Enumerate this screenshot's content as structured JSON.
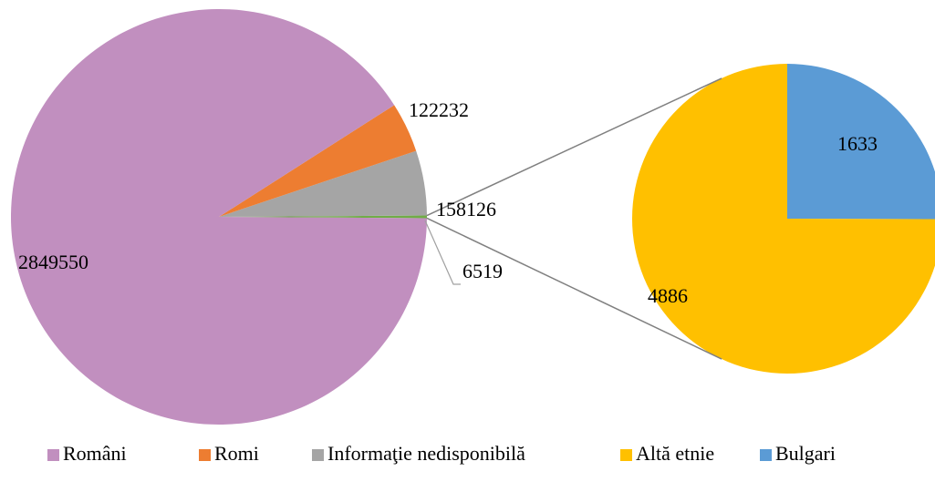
{
  "chart_data": {
    "type": "pie_of_pie",
    "categories": [
      "Români",
      "Romi",
      "Informaţie nedisponibilă"
    ],
    "values": [
      2849550,
      122232,
      158126
    ],
    "colors": [
      "#c18fbf",
      "#ed7d31",
      "#a5a5a5"
    ],
    "other_value": 6519,
    "other_color": "#70ad47",
    "secondary": {
      "categories": [
        "Altă etnie",
        "Bulgari"
      ],
      "values": [
        4886,
        1633
      ],
      "colors": [
        "#ffc000",
        "#5b9bd5"
      ]
    }
  }
}
